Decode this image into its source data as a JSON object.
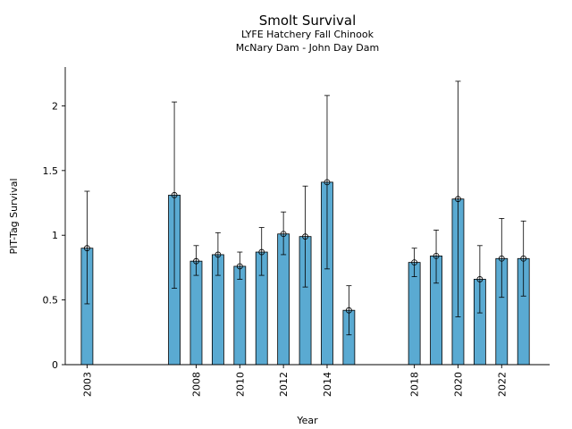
{
  "chart_data": {
    "type": "bar",
    "title": "Smolt Survival",
    "subtitle_lines": [
      "LYFE Hatchery Fall Chinook",
      "McNary Dam - John Day Dam"
    ],
    "xlabel": "Year",
    "ylabel": "PIT-Tag Survival",
    "xlim": [
      2002.0,
      2024.2
    ],
    "ylim": [
      0,
      2.3
    ],
    "grid": false,
    "legend": "none",
    "bar_color": "#5aaad2",
    "x_ticks": [
      2003,
      2008,
      2010,
      2012,
      2014,
      2018,
      2020,
      2022
    ],
    "y_ticks": [
      0,
      0.5,
      1,
      1.5,
      2
    ],
    "y_tick_labels": [
      "0",
      "0.5",
      "1",
      "1.5",
      "2"
    ],
    "series": [
      {
        "x": [
          2003,
          2007,
          2008,
          2009,
          2010,
          2011,
          2012,
          2013,
          2014,
          2015,
          2018,
          2019,
          2020,
          2021,
          2022,
          2023
        ],
        "values": [
          0.9,
          1.31,
          0.8,
          0.85,
          0.76,
          0.87,
          1.01,
          0.99,
          1.41,
          0.42,
          0.79,
          0.84,
          1.28,
          0.66,
          0.82,
          0.82
        ],
        "lower": [
          0.47,
          0.59,
          0.69,
          0.69,
          0.66,
          0.69,
          0.85,
          0.6,
          0.74,
          0.23,
          0.68,
          0.63,
          0.37,
          0.4,
          0.52,
          0.53
        ],
        "upper": [
          1.34,
          2.03,
          0.92,
          1.02,
          0.87,
          1.06,
          1.18,
          1.38,
          2.08,
          0.61,
          0.9,
          1.04,
          2.19,
          0.92,
          1.13,
          1.11
        ]
      }
    ]
  }
}
